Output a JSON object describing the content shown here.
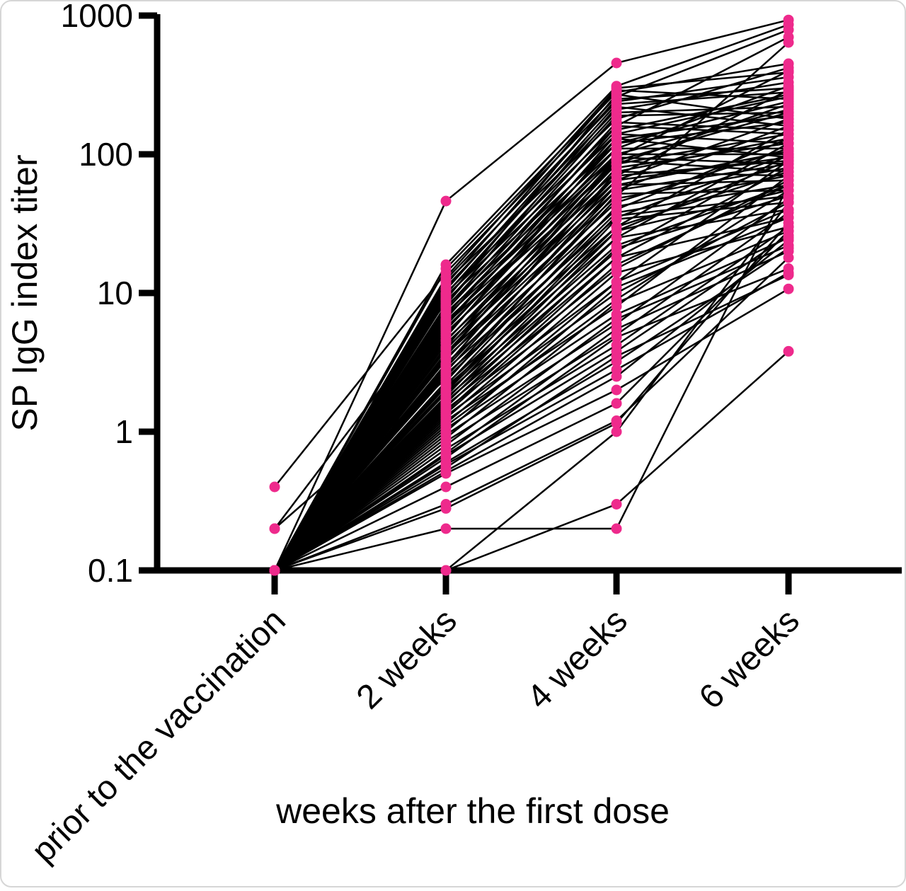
{
  "figure": {
    "background": "#ffffff",
    "border_color": "#d6d6d6"
  },
  "chart_data": {
    "type": "line",
    "variant": "paired individual subject trajectories (spaghetti plot)",
    "title": "",
    "xlabel": "weeks after the first dose",
    "ylabel": "SP IgG index titer",
    "x_categories": [
      "prior to the vaccination",
      "2 weeks",
      "4 weeks",
      "6 weeks"
    ],
    "y_scale": "log10",
    "ylim": [
      0.1,
      1000
    ],
    "y_ticks": [
      1000,
      100,
      10,
      1,
      0.1
    ],
    "y_tick_labels": [
      "1000",
      "100",
      "10",
      "1",
      "0.1"
    ],
    "grid": false,
    "legend": "none",
    "point_color": "#EE2A8C",
    "line_color": "#000000",
    "subjects": [
      [
        0.1,
        46,
        455,
        930
      ],
      [
        0.1,
        16,
        310,
        860
      ],
      [
        0.1,
        15,
        280,
        450
      ],
      [
        0.4,
        14,
        260,
        790
      ],
      [
        0.1,
        13,
        300,
        390
      ],
      [
        0.1,
        12.5,
        240,
        360
      ],
      [
        0.1,
        12,
        180,
        420
      ],
      [
        0.1,
        11.5,
        290,
        250
      ],
      [
        0.1,
        11,
        210,
        330
      ],
      [
        0.1,
        10.5,
        250,
        300
      ],
      [
        0.1,
        10,
        160,
        700
      ],
      [
        0.1,
        9.8,
        230,
        280
      ],
      [
        0.1,
        9.5,
        140,
        260
      ],
      [
        0.1,
        9.2,
        200,
        220
      ],
      [
        0.1,
        9,
        270,
        180
      ],
      [
        0.1,
        8.8,
        120,
        240
      ],
      [
        0.2,
        8.5,
        190,
        200
      ],
      [
        0.1,
        8.2,
        220,
        160
      ],
      [
        0.1,
        8,
        110,
        310
      ],
      [
        0.1,
        7.8,
        170,
        150
      ],
      [
        0.1,
        7.5,
        150,
        270
      ],
      [
        0.1,
        7.2,
        100,
        210
      ],
      [
        0.1,
        7,
        130,
        190
      ],
      [
        0.1,
        6.8,
        95,
        400
      ],
      [
        0.1,
        6.5,
        160,
        140
      ],
      [
        0.1,
        6.3,
        85,
        230
      ],
      [
        0.1,
        6.1,
        120,
        170
      ],
      [
        0.1,
        6,
        75,
        130
      ],
      [
        0.1,
        5.8,
        140,
        120
      ],
      [
        0.1,
        5.6,
        90,
        200
      ],
      [
        0.1,
        5.4,
        110,
        110
      ],
      [
        0.1,
        5.2,
        70,
        290
      ],
      [
        0.1,
        5,
        100,
        100
      ],
      [
        0.1,
        4.8,
        130,
        95
      ],
      [
        0.1,
        4.6,
        65,
        180
      ],
      [
        0.1,
        4.5,
        85,
        140
      ],
      [
        0.1,
        4.3,
        60,
        105
      ],
      [
        0.1,
        4.1,
        95,
        85
      ],
      [
        0.1,
        4,
        55,
        160
      ],
      [
        0.1,
        3.9,
        80,
        120
      ],
      [
        0.1,
        3.7,
        70,
        90
      ],
      [
        0.1,
        3.6,
        50,
        640
      ],
      [
        0.1,
        3.5,
        90,
        75
      ],
      [
        0.1,
        3.4,
        45,
        110
      ],
      [
        0.1,
        3.3,
        65,
        95
      ],
      [
        0.1,
        3.1,
        40,
        130
      ],
      [
        0.1,
        3,
        75,
        70
      ],
      [
        0.1,
        2.9,
        55,
        85
      ],
      [
        0.1,
        2.8,
        35,
        100
      ],
      [
        0.1,
        2.7,
        60,
        65
      ],
      [
        0.1,
        2.6,
        30,
        150
      ],
      [
        0.1,
        2.5,
        48,
        80
      ],
      [
        0.2,
        2.4,
        38,
        60
      ],
      [
        0.1,
        2.3,
        52,
        55
      ],
      [
        0.1,
        2.2,
        28,
        90
      ],
      [
        0.1,
        2.15,
        42,
        70
      ],
      [
        0.1,
        2.1,
        25,
        120
      ],
      [
        0.1,
        2,
        36,
        50
      ],
      [
        0.1,
        1.95,
        30,
        75
      ],
      [
        0.1,
        1.9,
        22,
        60
      ],
      [
        0.1,
        1.8,
        34,
        45
      ],
      [
        0.1,
        1.75,
        20,
        100
      ],
      [
        0.1,
        1.7,
        28,
        55
      ],
      [
        0.1,
        1.65,
        18,
        80
      ],
      [
        0.1,
        1.6,
        25,
        40
      ],
      [
        0.1,
        1.55,
        15,
        65
      ],
      [
        0.1,
        1.5,
        21,
        50
      ],
      [
        0.1,
        1.45,
        12,
        90
      ],
      [
        0.1,
        1.4,
        18,
        35
      ],
      [
        0.1,
        1.35,
        16,
        60
      ],
      [
        0.1,
        1.3,
        10,
        45
      ],
      [
        0.1,
        1.25,
        14,
        30
      ],
      [
        0.1,
        1.2,
        8,
        70
      ],
      [
        0.1,
        1.15,
        12,
        40
      ],
      [
        0.1,
        1.1,
        9,
        55
      ],
      [
        0.1,
        1.05,
        7,
        25
      ],
      [
        0.1,
        1,
        11,
        35
      ],
      [
        0.1,
        0.95,
        6,
        48
      ],
      [
        0.1,
        0.9,
        8.5,
        28
      ],
      [
        0.1,
        0.85,
        5,
        38
      ],
      [
        0.1,
        0.8,
        6.5,
        22
      ],
      [
        0.1,
        0.75,
        4.2,
        30
      ],
      [
        0.1,
        0.7,
        5.5,
        20
      ],
      [
        0.1,
        0.68,
        3.8,
        26
      ],
      [
        0.1,
        0.65,
        4.8,
        15
      ],
      [
        0.1,
        0.6,
        3.2,
        21
      ],
      [
        0.1,
        0.58,
        2.8,
        14
      ],
      [
        0.1,
        0.55,
        3.5,
        13.5
      ],
      [
        0.1,
        0.52,
        2.5,
        24
      ],
      [
        0.1,
        0.5,
        2.0,
        10.7
      ],
      [
        0.1,
        0.4,
        1.6,
        28
      ],
      [
        0.1,
        0.3,
        1.2,
        18
      ],
      [
        0.1,
        0.28,
        1.15,
        32
      ],
      [
        0.1,
        0.2,
        0.2,
        60
      ],
      [
        0.1,
        0.1,
        1.0,
        45
      ],
      [
        0.1,
        0.1,
        0.3,
        3.8
      ]
    ]
  }
}
